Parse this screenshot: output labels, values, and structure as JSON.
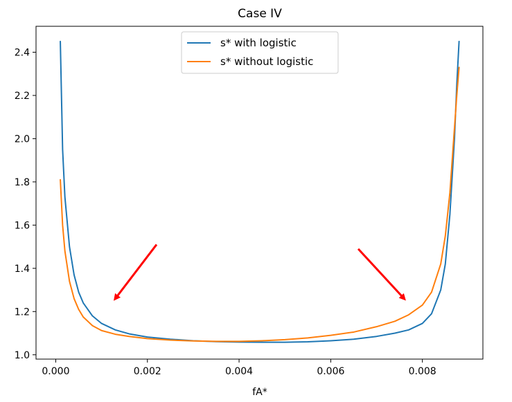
{
  "chart_data": {
    "type": "line",
    "title": "Case IV",
    "xlabel": "fA*",
    "ylabel": "",
    "xlim": [
      -0.00043,
      0.00932
    ],
    "ylim": [
      0.98,
      2.52
    ],
    "xticks": [
      0.0,
      0.002,
      0.004,
      0.006,
      0.008
    ],
    "xtick_labels": [
      "0.000",
      "0.002",
      "0.004",
      "0.006",
      "0.008"
    ],
    "yticks": [
      1.0,
      1.2,
      1.4,
      1.6,
      1.8,
      2.0,
      2.2,
      2.4
    ],
    "ytick_labels": [
      "1.0",
      "1.2",
      "1.4",
      "1.6",
      "1.8",
      "2.0",
      "2.2",
      "2.4"
    ],
    "grid": false,
    "legend_position": "top-center",
    "series": [
      {
        "name": "s* with logistic",
        "color": "#1f77b4",
        "x": [
          0.0001,
          0.00015,
          0.0002,
          0.0003,
          0.0004,
          0.0005,
          0.0006,
          0.0008,
          0.001,
          0.0013,
          0.0016,
          0.002,
          0.0025,
          0.003,
          0.0035,
          0.004,
          0.0045,
          0.005,
          0.0055,
          0.006,
          0.0065,
          0.007,
          0.0074,
          0.0077,
          0.008,
          0.0082,
          0.0084,
          0.0085,
          0.0086,
          0.0087,
          0.00875,
          0.0088
        ],
        "y": [
          2.45,
          1.95,
          1.73,
          1.5,
          1.37,
          1.29,
          1.24,
          1.18,
          1.145,
          1.115,
          1.097,
          1.082,
          1.072,
          1.065,
          1.061,
          1.059,
          1.058,
          1.058,
          1.06,
          1.065,
          1.072,
          1.085,
          1.1,
          1.115,
          1.145,
          1.19,
          1.3,
          1.42,
          1.65,
          2.0,
          2.25,
          2.45
        ]
      },
      {
        "name": "s* without logistic",
        "color": "#ff7f0e",
        "x": [
          0.0001,
          0.00015,
          0.0002,
          0.0003,
          0.0004,
          0.0005,
          0.0006,
          0.0008,
          0.001,
          0.0013,
          0.0016,
          0.002,
          0.0025,
          0.003,
          0.0035,
          0.004,
          0.0045,
          0.005,
          0.0055,
          0.006,
          0.0065,
          0.007,
          0.0074,
          0.0077,
          0.008,
          0.0082,
          0.0084,
          0.0085,
          0.0086,
          0.0087,
          0.00875,
          0.0088
        ],
        "y": [
          1.81,
          1.6,
          1.48,
          1.34,
          1.26,
          1.21,
          1.175,
          1.135,
          1.112,
          1.095,
          1.085,
          1.075,
          1.068,
          1.064,
          1.062,
          1.062,
          1.065,
          1.07,
          1.078,
          1.09,
          1.105,
          1.13,
          1.155,
          1.185,
          1.23,
          1.29,
          1.42,
          1.55,
          1.75,
          2.05,
          2.2,
          2.33
        ]
      }
    ],
    "annotations": [
      {
        "type": "arrow",
        "color": "#ff0000",
        "from": [
          0.0022,
          1.51
        ],
        "to": [
          0.0013,
          1.26
        ]
      },
      {
        "type": "arrow",
        "color": "#ff0000",
        "from": [
          0.0066,
          1.49
        ],
        "to": [
          0.0076,
          1.26
        ]
      }
    ]
  }
}
